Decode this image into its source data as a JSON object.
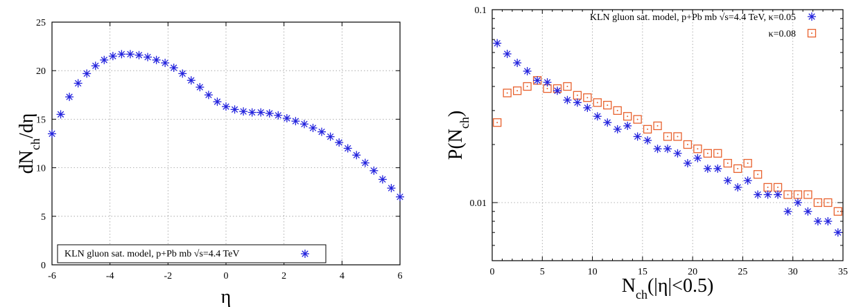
{
  "chart_data": [
    {
      "type": "scatter",
      "title": "",
      "xlabel": "η",
      "ylabel": "dNch/dη",
      "ylabel_parts": [
        "dN",
        "ch",
        "/dη"
      ],
      "xlim": [
        -6,
        6
      ],
      "ylim": [
        0,
        25
      ],
      "x_ticks": [
        -6,
        -4,
        -2,
        0,
        2,
        4,
        6
      ],
      "y_ticks": [
        0,
        5,
        10,
        15,
        20,
        25
      ],
      "grid": true,
      "legend_position": "bottom-left",
      "series": [
        {
          "name": "KLN gluon sat. model, p+Pb mb √s=4.4 TeV",
          "marker": "asterisk",
          "color": "#2222dd",
          "x": [
            -6.0,
            -5.7,
            -5.4,
            -5.1,
            -4.8,
            -4.5,
            -4.2,
            -3.9,
            -3.6,
            -3.3,
            -3.0,
            -2.7,
            -2.4,
            -2.1,
            -1.8,
            -1.5,
            -1.2,
            -0.9,
            -0.6,
            -0.3,
            0.0,
            0.3,
            0.6,
            0.9,
            1.2,
            1.5,
            1.8,
            2.1,
            2.4,
            2.7,
            3.0,
            3.3,
            3.6,
            3.9,
            4.2,
            4.5,
            4.8,
            5.1,
            5.4,
            5.7,
            6.0
          ],
          "y": [
            13.5,
            15.5,
            17.3,
            18.7,
            19.7,
            20.5,
            21.1,
            21.5,
            21.7,
            21.7,
            21.6,
            21.4,
            21.1,
            20.8,
            20.3,
            19.7,
            19.0,
            18.3,
            17.5,
            16.8,
            16.3,
            16.0,
            15.8,
            15.7,
            15.7,
            15.6,
            15.4,
            15.1,
            14.8,
            14.5,
            14.1,
            13.7,
            13.2,
            12.6,
            12.0,
            11.3,
            10.5,
            9.7,
            8.8,
            7.9,
            7.0
          ]
        }
      ]
    },
    {
      "type": "scatter",
      "title": "",
      "xlabel": "Nch(|η|<0.5)",
      "xlabel_parts": [
        "N",
        "ch",
        "(|η|<0.5)"
      ],
      "ylabel": "P(Nch)",
      "ylabel_parts": [
        "P(N",
        "ch",
        ")"
      ],
      "xlim": [
        0,
        35
      ],
      "ylim": [
        0.005,
        0.1
      ],
      "y_scale": "log",
      "x_ticks": [
        0,
        5,
        10,
        15,
        20,
        25,
        30,
        35
      ],
      "y_tick_labels": [
        "0.01",
        "0.1"
      ],
      "grid": true,
      "legend_position": "top-right",
      "series": [
        {
          "name": "KLN gluon sat. model, p+Pb mb √s=4.4 TeV, κ=0.05",
          "marker": "asterisk",
          "color": "#2222dd",
          "x": [
            0.5,
            1.5,
            2.5,
            3.5,
            4.5,
            5.5,
            6.5,
            7.5,
            8.5,
            9.5,
            10.5,
            11.5,
            12.5,
            13.5,
            14.5,
            15.5,
            16.5,
            17.5,
            18.5,
            19.5,
            20.5,
            21.5,
            22.5,
            23.5,
            24.5,
            25.5,
            26.5,
            27.5,
            28.5,
            29.5,
            30.5,
            31.5,
            32.5,
            33.5,
            34.5
          ],
          "y": [
            0.067,
            0.059,
            0.053,
            0.048,
            0.043,
            0.042,
            0.038,
            0.034,
            0.033,
            0.031,
            0.028,
            0.026,
            0.024,
            0.025,
            0.022,
            0.021,
            0.019,
            0.019,
            0.018,
            0.016,
            0.017,
            0.015,
            0.015,
            0.013,
            0.012,
            0.013,
            0.011,
            0.011,
            0.011,
            0.009,
            0.01,
            0.009,
            0.008,
            0.008,
            0.007
          ]
        },
        {
          "name": "κ=0.08",
          "marker": "dotted-square",
          "color": "#e8602c",
          "x": [
            0.5,
            1.5,
            2.5,
            3.5,
            4.5,
            5.5,
            6.5,
            7.5,
            8.5,
            9.5,
            10.5,
            11.5,
            12.5,
            13.5,
            14.5,
            15.5,
            16.5,
            17.5,
            18.5,
            19.5,
            20.5,
            21.5,
            22.5,
            23.5,
            24.5,
            25.5,
            26.5,
            27.5,
            28.5,
            29.5,
            30.5,
            31.5,
            32.5,
            33.5,
            34.5
          ],
          "y": [
            0.026,
            0.037,
            0.038,
            0.04,
            0.043,
            0.039,
            0.039,
            0.04,
            0.036,
            0.035,
            0.033,
            0.032,
            0.03,
            0.028,
            0.027,
            0.024,
            0.025,
            0.022,
            0.022,
            0.02,
            0.019,
            0.018,
            0.018,
            0.016,
            0.015,
            0.016,
            0.014,
            0.012,
            0.012,
            0.011,
            0.011,
            0.011,
            0.01,
            0.01,
            0.009
          ]
        }
      ]
    }
  ]
}
